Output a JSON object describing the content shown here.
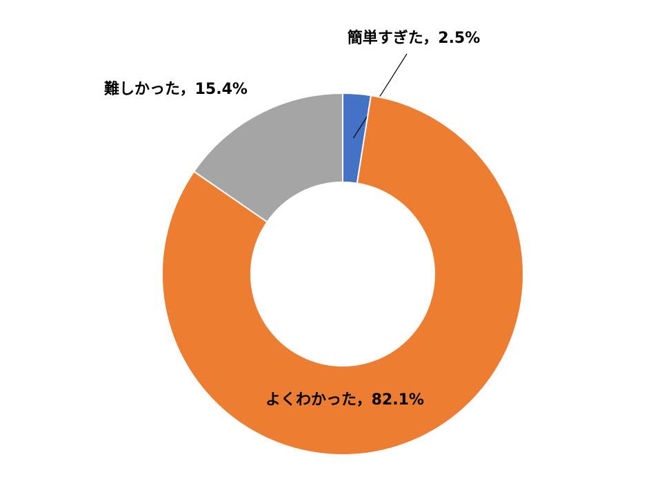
{
  "chart_data": {
    "type": "pie",
    "values": [
      2.5,
      82.1,
      15.4
    ],
    "value_labels": [
      "簡単すぎた，2.5%",
      "よくわかった，82.1%",
      "難しかった，15.4%"
    ],
    "colors": [
      "#4472c4",
      "#ed7d31",
      "#a5a5a5"
    ],
    "donut": true
  }
}
